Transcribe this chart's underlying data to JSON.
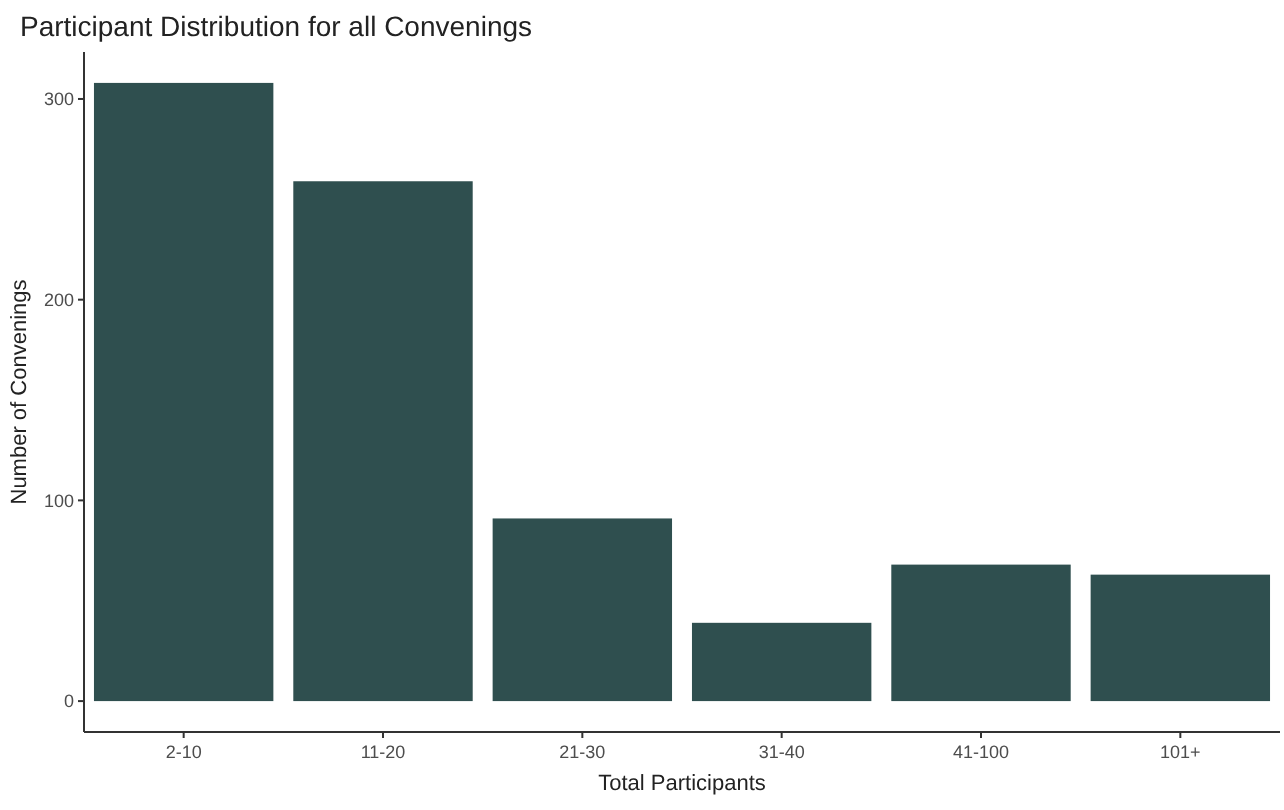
{
  "chart_data": {
    "type": "bar",
    "title": "Participant Distribution for all Convenings",
    "xlabel": "Total Participants",
    "ylabel": "Number of Convenings",
    "categories": [
      "2-10",
      "11-20",
      "21-30",
      "31-40",
      "41-100",
      "101+"
    ],
    "values": [
      308,
      259,
      91,
      39,
      68,
      63
    ],
    "color": "#2f4f4f",
    "ylim": [
      -15.4,
      323.4
    ],
    "yticks": [
      0,
      100,
      200,
      300
    ],
    "grid": false
  }
}
